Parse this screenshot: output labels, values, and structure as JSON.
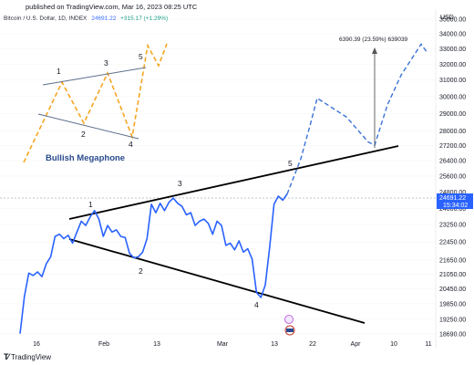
{
  "header": {
    "published": "published on TradingView.com, Mar 16, 2023 08:25 UTC",
    "symbol": "Bitcoin / U.S. Dollar, 1D, INDEX",
    "last_price": "24691.22",
    "change": "+315.17 (+1.29%)"
  },
  "footer": {
    "brand": "TradingView"
  },
  "chart_data": {
    "type": "line",
    "currency": "USD",
    "y_scale": "log",
    "ylim": [
      18690,
      35000
    ],
    "x_ticks": [
      "16",
      "Feb",
      "13",
      "Mar",
      "13",
      "22",
      "Apr",
      "10",
      "11"
    ],
    "y_ticks": [
      "35000.00",
      "34000.00",
      "33000.00",
      "32000.00",
      "31000.00",
      "30000.00",
      "29000.00",
      "28000.00",
      "27200.00",
      "26400.00",
      "25600.00",
      "24800.00",
      "24000.00",
      "23250.00",
      "22450.00",
      "21650.00",
      "21050.00",
      "20450.00",
      "19850.00",
      "19250.00",
      "18690.00"
    ],
    "price_label": {
      "value": "24691.22",
      "countdown": "15:34:02"
    },
    "price_path": [
      18700,
      20150,
      21100,
      21000,
      21150,
      20950,
      21500,
      21800,
      22700,
      22800,
      22600,
      22750,
      22400,
      22900,
      23400,
      23200,
      23600,
      23900,
      23500,
      22700,
      23200,
      22900,
      23000,
      22700,
      22650,
      21950,
      21750,
      21800,
      22000,
      22600,
      24200,
      23800,
      24250,
      23900,
      24300,
      24500,
      24250,
      24100,
      23700,
      23800,
      23200,
      23400,
      23500,
      23300,
      22800,
      23400,
      23200,
      22300,
      22400,
      22100,
      22500,
      22000,
      22150,
      21700,
      20300,
      20100,
      20600,
      22200,
      24200,
      24600,
      24400,
      24700
    ],
    "projection_path": [
      24700,
      26500,
      28300,
      29900,
      28800,
      27400,
      27220,
      29500,
      31300,
      33300,
      32800
    ],
    "wave_labels": [
      "1",
      "2",
      "3",
      "4",
      "5"
    ],
    "annotation": "6390.39 (23.59%) 639039",
    "inset": {
      "title": "Bullish Megaphone",
      "labels": [
        "1",
        "2",
        "3",
        "4",
        "5"
      ]
    }
  },
  "colors": {
    "price": "#2962ff",
    "projection": "#3a72d6",
    "pattern": "#f5a623",
    "trendline": "#000000",
    "text": "#131722"
  }
}
